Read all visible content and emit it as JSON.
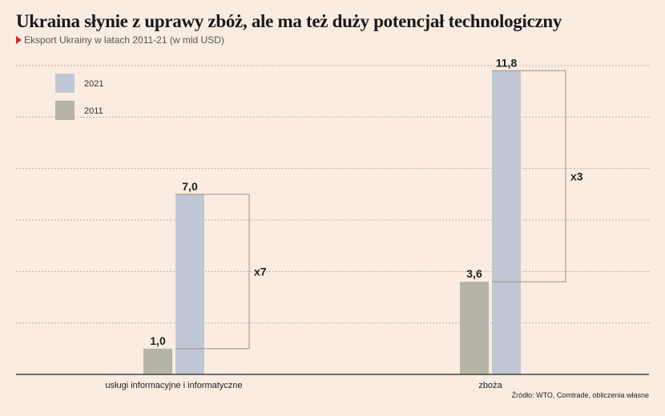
{
  "title": "Ukraina słynie z uprawy zbóż, ale ma też duży potencjał technologiczny",
  "subtitle": "Eksport Ukrainy w latach 2011-21 (w mld USD)",
  "source": "Źródło: WTO, Comtrade, obliczenia własne",
  "colors": {
    "s2011": "#b6b4a6",
    "s2021": "#c2c7d6",
    "background": "#faece1"
  },
  "chart_data": {
    "type": "bar",
    "categories": [
      "usługi informacyjne i informatyczne",
      "zboża"
    ],
    "series": [
      {
        "name": "2011",
        "values": [
          1.0,
          3.6
        ],
        "labels": [
          "1,0",
          "3,6"
        ]
      },
      {
        "name": "2021",
        "values": [
          7.0,
          11.8
        ],
        "labels": [
          "7,0",
          "11,8"
        ]
      }
    ],
    "multipliers": [
      "x7",
      "x3"
    ],
    "legend": [
      "2021",
      "2011"
    ],
    "ylim": [
      0,
      12
    ],
    "grid": true,
    "legend_position": "top-left"
  }
}
